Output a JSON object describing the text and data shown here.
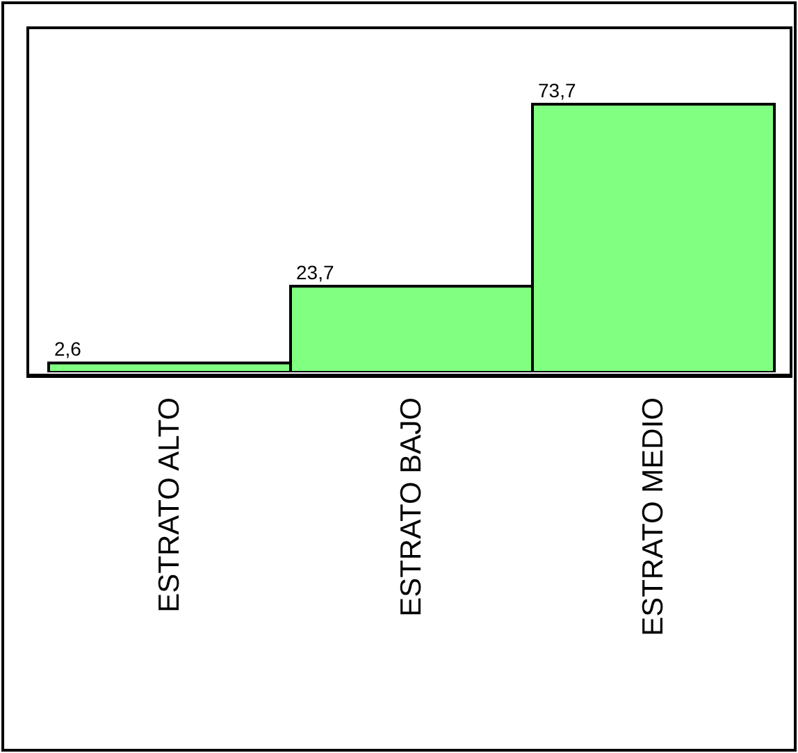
{
  "chart_data": {
    "type": "bar",
    "categories": [
      "ESTRATO ALTO",
      "ESTRATO BAJO",
      "ESTRATO MEDIO"
    ],
    "values": [
      2.6,
      23.7,
      73.7
    ],
    "value_labels": [
      "2,6",
      "23,7",
      "73,7"
    ],
    "color": "#80ff80",
    "legend": false,
    "grid": false
  }
}
